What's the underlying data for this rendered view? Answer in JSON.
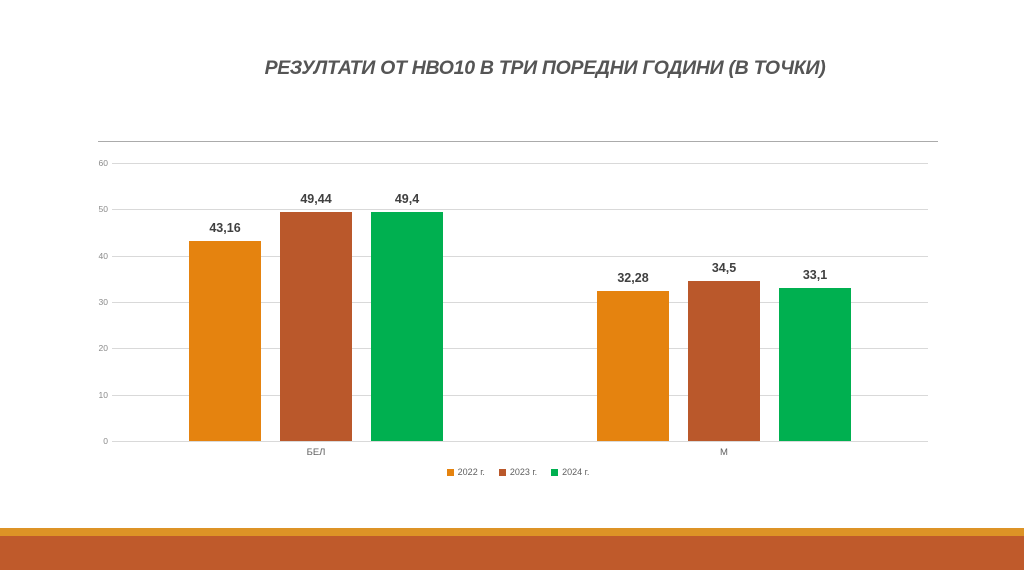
{
  "slide": {
    "title": "РЕЗУЛТАТИ ОТ НВО10 В ТРИ ПОРЕДНИ ГОДИНИ (В ТОЧКИ)",
    "background_color": "#FFFFFF",
    "footer_stripe_color": "#DD9326",
    "footer_band_color": "#BF5A2B"
  },
  "chart_data": {
    "type": "bar",
    "title": "РЕЗУЛТАТИ ОТ НВО10 В ТРИ ПОРЕДНИ ГОДИНИ (В ТОЧКИ)",
    "categories": [
      "БЕЛ",
      "М"
    ],
    "series": [
      {
        "name": "2022 г.",
        "color": "#E5830F",
        "values": [
          43.16,
          32.28
        ],
        "labels": [
          "43,16",
          "32,28"
        ]
      },
      {
        "name": "2023 г.",
        "color": "#BA582B",
        "values": [
          49.44,
          34.5
        ],
        "labels": [
          "49,44",
          "34,5"
        ]
      },
      {
        "name": "2024 г.",
        "color": "#00B050",
        "values": [
          49.4,
          33.1
        ],
        "labels": [
          "49,4",
          "33,1"
        ]
      }
    ],
    "xlabel": "",
    "ylabel": "",
    "ylim": [
      0,
      60
    ],
    "y_tick_step": 10,
    "y_tick_labels": [
      "0",
      "10",
      "20",
      "30",
      "40",
      "50",
      "60"
    ],
    "grid": true,
    "gridline_color": "#D9D9D9",
    "plot_top_border_color": "#ABABAB",
    "data_label_color": "#404040",
    "tick_label_color": "#8A8A8A",
    "legend_position": "bottom"
  }
}
